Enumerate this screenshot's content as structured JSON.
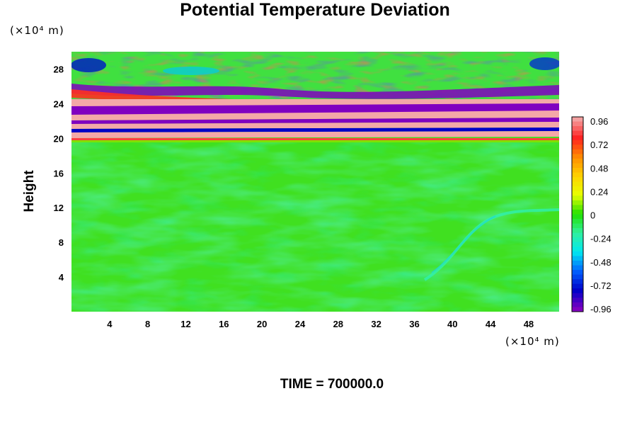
{
  "chart_data": {
    "type": "heatmap",
    "title": "Potential Temperature Deviation",
    "ylabel": "Height",
    "xunit": "(×10⁴ m)",
    "yunit": "(×10⁴ m)",
    "xticks": [
      4,
      8,
      12,
      16,
      20,
      24,
      28,
      32,
      36,
      40,
      44,
      48
    ],
    "yticks": [
      4,
      8,
      12,
      16,
      20,
      24,
      28
    ],
    "xlim": [
      0,
      51.2
    ],
    "ylim": [
      0,
      30
    ],
    "colorbar": {
      "range": [
        -1.0,
        1.0
      ],
      "ticks": [
        "0.96",
        "0.72",
        "0.48",
        "0.24",
        "0",
        "-0.24",
        "-0.48",
        "-0.72",
        "-0.96"
      ],
      "colors": [
        "#f4a0a0",
        "#ff2020",
        "#ff8c00",
        "#ffd200",
        "#e8ff00",
        "#20e000",
        "#30f0a0",
        "#00e8f0",
        "#0060ff",
        "#0000c8",
        "#8000c0"
      ]
    },
    "features": [
      {
        "region": "y 0-20",
        "value": 0.0,
        "description_color": "green"
      },
      {
        "region": "y 20-24",
        "value": "alternating +0.96 / -0.96 bands"
      },
      {
        "region": "y 24-30",
        "value": "mixed small-scale fluctuations"
      }
    ]
  },
  "footer": {
    "time_label": "TIME = 700000.0"
  }
}
